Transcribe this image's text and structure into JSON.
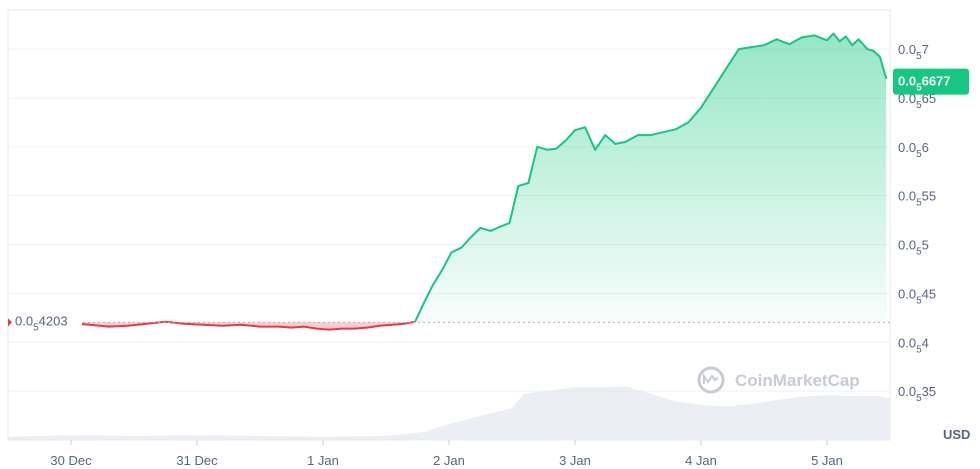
{
  "chart_data": {
    "type": "area",
    "currency": "USD",
    "y_subscript_zeros": "5",
    "y_prefix": "0.0",
    "ylim": [
      0.3,
      0.74
    ],
    "y_ticks": [
      {
        "value": 0.7,
        "digits": "7"
      },
      {
        "value": 0.65,
        "digits": "65"
      },
      {
        "value": 0.6,
        "digits": "6"
      },
      {
        "value": 0.55,
        "digits": "55"
      },
      {
        "value": 0.5,
        "digits": "5"
      },
      {
        "value": 0.45,
        "digits": "45"
      },
      {
        "value": 0.4,
        "digits": "4"
      },
      {
        "value": 0.35,
        "digits": "35"
      }
    ],
    "x_ticks": [
      "30 Dec",
      "31 Dec",
      "1 Jan",
      "2 Jan",
      "3 Jan",
      "4 Jan",
      "5 Jan"
    ],
    "x_tick_pos": [
      0.5,
      1.5,
      2.5,
      3.5,
      4.5,
      5.5,
      6.5
    ],
    "xlim": [
      0.0,
      7.0
    ],
    "reference_value": 0.4203,
    "reference_label_digits": "4203",
    "current_value": 0.6677,
    "current_label_digits": "6677",
    "up_color": "#16c784",
    "down_color": "#ea3943",
    "grid": true,
    "watermark": "CoinMarketCap",
    "price_points": [
      [
        0.55,
        0.419
      ],
      [
        0.65,
        0.418
      ],
      [
        0.8,
        0.416
      ],
      [
        0.95,
        0.417
      ],
      [
        1.1,
        0.419
      ],
      [
        1.25,
        0.421
      ],
      [
        1.4,
        0.419
      ],
      [
        1.55,
        0.418
      ],
      [
        1.7,
        0.417
      ],
      [
        1.85,
        0.418
      ],
      [
        2.0,
        0.416
      ],
      [
        2.15,
        0.416
      ],
      [
        2.25,
        0.415
      ],
      [
        2.35,
        0.416
      ],
      [
        2.45,
        0.414
      ],
      [
        2.55,
        0.413
      ],
      [
        2.65,
        0.414
      ],
      [
        2.75,
        0.414
      ],
      [
        2.85,
        0.415
      ],
      [
        2.95,
        0.417
      ],
      [
        3.05,
        0.418
      ],
      [
        3.15,
        0.419
      ],
      [
        3.23,
        0.421
      ],
      [
        3.3,
        0.44
      ],
      [
        3.37,
        0.458
      ],
      [
        3.45,
        0.475
      ],
      [
        3.52,
        0.492
      ],
      [
        3.6,
        0.497
      ],
      [
        3.67,
        0.507
      ],
      [
        3.75,
        0.517
      ],
      [
        3.83,
        0.514
      ],
      [
        3.9,
        0.518
      ],
      [
        3.98,
        0.522
      ],
      [
        4.05,
        0.56
      ],
      [
        4.13,
        0.563
      ],
      [
        4.2,
        0.6
      ],
      [
        4.28,
        0.597
      ],
      [
        4.35,
        0.598
      ],
      [
        4.43,
        0.607
      ],
      [
        4.5,
        0.617
      ],
      [
        4.58,
        0.62
      ],
      [
        4.66,
        0.597
      ],
      [
        4.74,
        0.612
      ],
      [
        4.82,
        0.603
      ],
      [
        4.9,
        0.605
      ],
      [
        5.0,
        0.612
      ],
      [
        5.1,
        0.612
      ],
      [
        5.2,
        0.615
      ],
      [
        5.3,
        0.618
      ],
      [
        5.4,
        0.625
      ],
      [
        5.5,
        0.64
      ],
      [
        5.6,
        0.66
      ],
      [
        5.7,
        0.68
      ],
      [
        5.8,
        0.7
      ],
      [
        5.9,
        0.702
      ],
      [
        6.0,
        0.704
      ],
      [
        6.1,
        0.71
      ],
      [
        6.2,
        0.705
      ],
      [
        6.3,
        0.712
      ],
      [
        6.4,
        0.714
      ],
      [
        6.5,
        0.709
      ],
      [
        6.55,
        0.716
      ],
      [
        6.6,
        0.708
      ],
      [
        6.65,
        0.713
      ],
      [
        6.7,
        0.704
      ],
      [
        6.75,
        0.71
      ],
      [
        6.82,
        0.7
      ],
      [
        6.87,
        0.698
      ],
      [
        6.92,
        0.692
      ],
      [
        6.97,
        0.67
      ]
    ],
    "volume_points": [
      [
        0.0,
        0.04
      ],
      [
        0.5,
        0.06
      ],
      [
        1.0,
        0.05
      ],
      [
        1.5,
        0.06
      ],
      [
        2.0,
        0.05
      ],
      [
        2.5,
        0.04
      ],
      [
        3.0,
        0.05
      ],
      [
        3.3,
        0.1
      ],
      [
        3.5,
        0.2
      ],
      [
        3.75,
        0.3
      ],
      [
        4.0,
        0.4
      ],
      [
        4.1,
        0.58
      ],
      [
        4.3,
        0.62
      ],
      [
        4.5,
        0.66
      ],
      [
        4.7,
        0.66
      ],
      [
        4.9,
        0.67
      ],
      [
        5.1,
        0.58
      ],
      [
        5.3,
        0.48
      ],
      [
        5.5,
        0.44
      ],
      [
        5.7,
        0.42
      ],
      [
        5.9,
        0.45
      ],
      [
        6.1,
        0.5
      ],
      [
        6.3,
        0.54
      ],
      [
        6.5,
        0.56
      ],
      [
        6.7,
        0.55
      ],
      [
        6.9,
        0.55
      ],
      [
        7.0,
        0.52
      ]
    ]
  }
}
